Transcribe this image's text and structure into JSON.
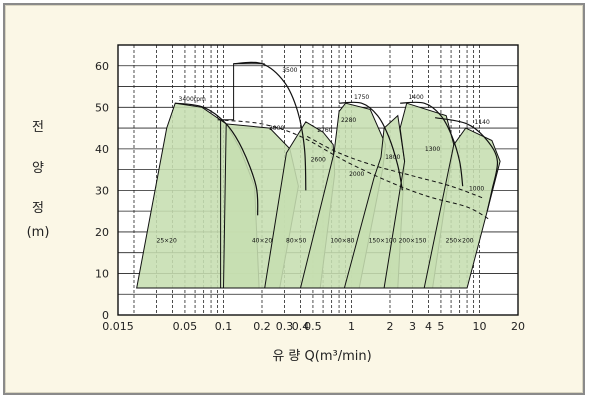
{
  "chart_data": {
    "type": "area",
    "title": "",
    "ylabel_lines": [
      "전",
      "양",
      "정",
      "(m)"
    ],
    "xlabel": "유   량 Q(m³/min)",
    "x_scale": "log",
    "xlim": [
      0.015,
      20
    ],
    "ylim": [
      0,
      65
    ],
    "grid": true,
    "y_ticks": [
      "0",
      "10",
      "20",
      "30",
      "40",
      "50",
      "60"
    ],
    "x_ticks": [
      {
        "v": 0.015,
        "label": "0.015"
      },
      {
        "v": 0.05,
        "label": "0.05"
      },
      {
        "v": 0.1,
        "label": "0.1"
      },
      {
        "v": 0.2,
        "label": "0.2"
      },
      {
        "v": 0.3,
        "label": "0.3"
      },
      {
        "v": 0.4,
        "label": "0.4"
      },
      {
        "v": 0.5,
        "label": "0.5"
      },
      {
        "v": 1,
        "label": "1"
      },
      {
        "v": 2,
        "label": "2"
      },
      {
        "v": 3,
        "label": "3"
      },
      {
        "v": 4,
        "label": "4"
      },
      {
        "v": 5,
        "label": "5"
      },
      {
        "v": 10,
        "label": "10"
      },
      {
        "v": 20,
        "label": "20"
      }
    ],
    "fill_color": "#c6deb0",
    "line_color": "#111111",
    "series": [
      {
        "name": "25×20",
        "label_at": [
          0.036,
          17.5
        ],
        "outline": [
          [
            0.021,
            6.5
          ],
          [
            0.036,
            45
          ],
          [
            0.042,
            51
          ],
          [
            0.068,
            50
          ],
          [
            0.105,
            46
          ],
          [
            0.135,
            40
          ],
          [
            0.175,
            31
          ],
          [
            0.19,
            6.5
          ]
        ]
      },
      {
        "name": "40×20",
        "label_at": [
          0.2,
          17.5
        ],
        "outline": [
          [
            0.1,
            6.5
          ],
          [
            0.105,
            46
          ],
          [
            0.23,
            45
          ],
          [
            0.33,
            40
          ],
          [
            0.385,
            31
          ],
          [
            0.275,
            6.5
          ]
        ]
      },
      {
        "name": "80×50",
        "label_at": [
          0.37,
          17.5
        ],
        "outline": [
          [
            0.21,
            6.5
          ],
          [
            0.31,
            39
          ],
          [
            0.44,
            46.5
          ],
          [
            0.6,
            44
          ],
          [
            0.72,
            41
          ],
          [
            0.74,
            34
          ],
          [
            0.57,
            6.5
          ]
        ]
      },
      {
        "name": "100×80",
        "label_at": [
          0.85,
          17.5
        ],
        "outline": [
          [
            0.4,
            6.5
          ],
          [
            0.73,
            39
          ],
          [
            0.8,
            49
          ],
          [
            0.9,
            51
          ],
          [
            1.4,
            49.5
          ],
          [
            1.85,
            41
          ],
          [
            1.75,
            35
          ],
          [
            1.15,
            6.5
          ]
        ]
      },
      {
        "name": "150×100",
        "label_at": [
          1.75,
          17.5
        ],
        "outline": [
          [
            0.88,
            6.5
          ],
          [
            1.5,
            33
          ],
          [
            1.7,
            38
          ],
          [
            1.8,
            45
          ],
          [
            2.3,
            48
          ],
          [
            2.6,
            37
          ],
          [
            2.3,
            6.5
          ]
        ]
      },
      {
        "name": "200×150",
        "label_at": [
          3.0,
          17.5
        ],
        "outline": [
          [
            1.8,
            6.5
          ],
          [
            2.6,
            37
          ],
          [
            2.4,
            45
          ],
          [
            2.7,
            51
          ],
          [
            5.5,
            48
          ],
          [
            6.3,
            41
          ],
          [
            4.3,
            6.5
          ]
        ]
      },
      {
        "name": "250×200",
        "label_at": [
          7.0,
          17.5
        ],
        "outline": [
          [
            3.7,
            6.5
          ],
          [
            6.3,
            41
          ],
          [
            7.8,
            45
          ],
          [
            12.5,
            42
          ],
          [
            14.5,
            37
          ],
          [
            11.5,
            25
          ],
          [
            8,
            6.5
          ]
        ]
      }
    ],
    "stair": [
      [
        0.095,
        6.5
      ],
      [
        0.095,
        47
      ],
      [
        0.12,
        47
      ],
      [
        0.12,
        60.5
      ],
      [
        0.21,
        60.5
      ]
    ],
    "hq_curves": [
      {
        "name": "3400rpm",
        "label_at": [
          0.057,
          51.5
        ],
        "points": [
          [
            0.042,
            51
          ],
          [
            0.07,
            50
          ],
          [
            0.105,
            46
          ],
          [
            0.14,
            40
          ],
          [
            0.18,
            31
          ],
          [
            0.185,
            24
          ]
        ]
      },
      {
        "name": "3500",
        "label_at": [
          0.33,
          58.5
        ],
        "points": [
          [
            0.12,
            60.5
          ],
          [
            0.2,
            60.5
          ],
          [
            0.3,
            56
          ],
          [
            0.38,
            49
          ],
          [
            0.43,
            40
          ],
          [
            0.44,
            30
          ]
        ]
      },
      {
        "name": "1750",
        "label_at": [
          1.2,
          52
        ],
        "points": [
          [
            0.8,
            51
          ],
          [
            1.2,
            51
          ],
          [
            1.6,
            48
          ],
          [
            1.95,
            43
          ],
          [
            2.3,
            36
          ],
          [
            2.5,
            30
          ]
        ]
      },
      {
        "name": "1400",
        "label_at": [
          3.2,
          52
        ],
        "points": [
          [
            2.4,
            51
          ],
          [
            3.7,
            51
          ],
          [
            5,
            48
          ],
          [
            6.1,
            43
          ],
          [
            7,
            37
          ],
          [
            7.4,
            31
          ]
        ]
      },
      {
        "name": "1140",
        "label_at": [
          10.5,
          46
        ],
        "points": [
          [
            4.5,
            47.5
          ],
          [
            8,
            46
          ],
          [
            11.5,
            42
          ],
          [
            13.8,
            37
          ],
          [
            12.5,
            30
          ],
          [
            11.5,
            25
          ]
        ]
      }
    ],
    "dashed_curves": [
      {
        "points": [
          [
            0.09,
            47
          ],
          [
            0.2,
            46
          ],
          [
            0.4,
            43
          ],
          [
            0.9,
            37
          ],
          [
            2,
            32
          ],
          [
            4,
            28.5
          ],
          [
            8,
            26
          ],
          [
            12,
            23
          ]
        ]
      },
      {
        "points": [
          [
            0.45,
            43
          ],
          [
            0.8,
            39
          ],
          [
            1.5,
            36
          ],
          [
            3,
            33.5
          ],
          [
            6,
            31
          ],
          [
            11,
            28
          ]
        ]
      }
    ],
    "rpm_labels": [
      {
        "text": "3000",
        "at": [
          0.26,
          44.5
        ]
      },
      {
        "text": "2760",
        "at": [
          0.62,
          44
        ]
      },
      {
        "text": "2600",
        "at": [
          0.55,
          37
        ]
      },
      {
        "text": "2280",
        "at": [
          0.95,
          46.5
        ]
      },
      {
        "text": "2000",
        "at": [
          1.1,
          33.5
        ]
      },
      {
        "text": "1800",
        "at": [
          2.1,
          37.5
        ]
      },
      {
        "text": "1300",
        "at": [
          4.3,
          39.5
        ]
      },
      {
        "text": "1000",
        "at": [
          9.5,
          30
        ]
      }
    ]
  }
}
